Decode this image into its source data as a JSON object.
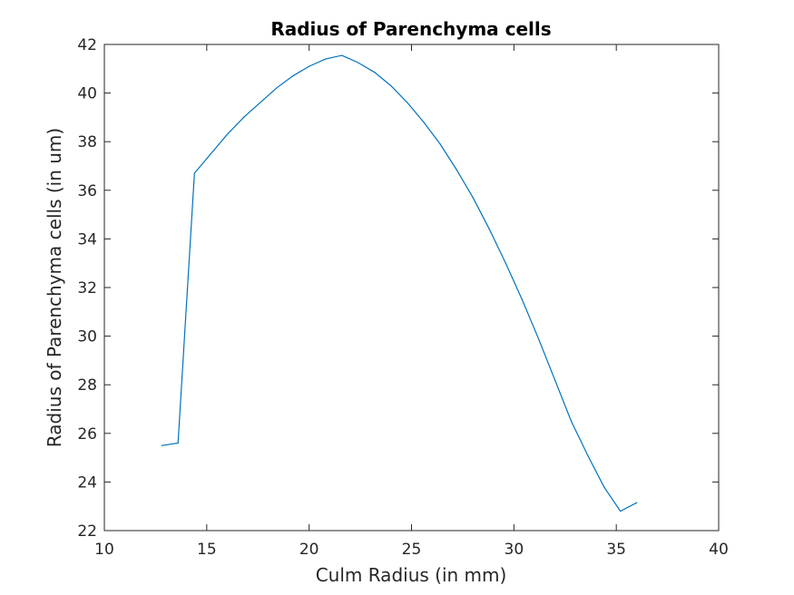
{
  "chart_data": {
    "type": "line",
    "title": "Radius of Parenchyma cells",
    "xlabel": "Culm Radius (in mm)",
    "ylabel": "Radius of Parenchyma cells (in um)",
    "xlim": [
      10,
      40
    ],
    "ylim": [
      22,
      42
    ],
    "xticks": [
      10,
      15,
      20,
      25,
      30,
      35,
      40
    ],
    "yticks": [
      22,
      24,
      26,
      28,
      30,
      32,
      34,
      36,
      38,
      40,
      42
    ],
    "grid": false,
    "series": [
      {
        "color": "#0072BD",
        "x": [
          12.8,
          13.6,
          14.4,
          15.2,
          16.0,
          16.8,
          17.6,
          18.4,
          19.2,
          20.0,
          20.8,
          21.6,
          22.4,
          23.2,
          24.0,
          24.8,
          25.6,
          26.4,
          27.2,
          28.0,
          28.8,
          29.6,
          30.4,
          31.2,
          32.0,
          32.8,
          33.6,
          34.4,
          35.2,
          36.0
        ],
        "y": [
          25.5,
          25.6,
          36.7,
          37.5,
          38.3,
          39.0,
          39.6,
          40.2,
          40.7,
          41.1,
          41.4,
          41.55,
          41.25,
          40.85,
          40.3,
          39.6,
          38.8,
          37.9,
          36.85,
          35.7,
          34.4,
          33.0,
          31.5,
          29.9,
          28.2,
          26.5,
          25.1,
          23.8,
          22.8,
          23.15
        ]
      }
    ]
  }
}
